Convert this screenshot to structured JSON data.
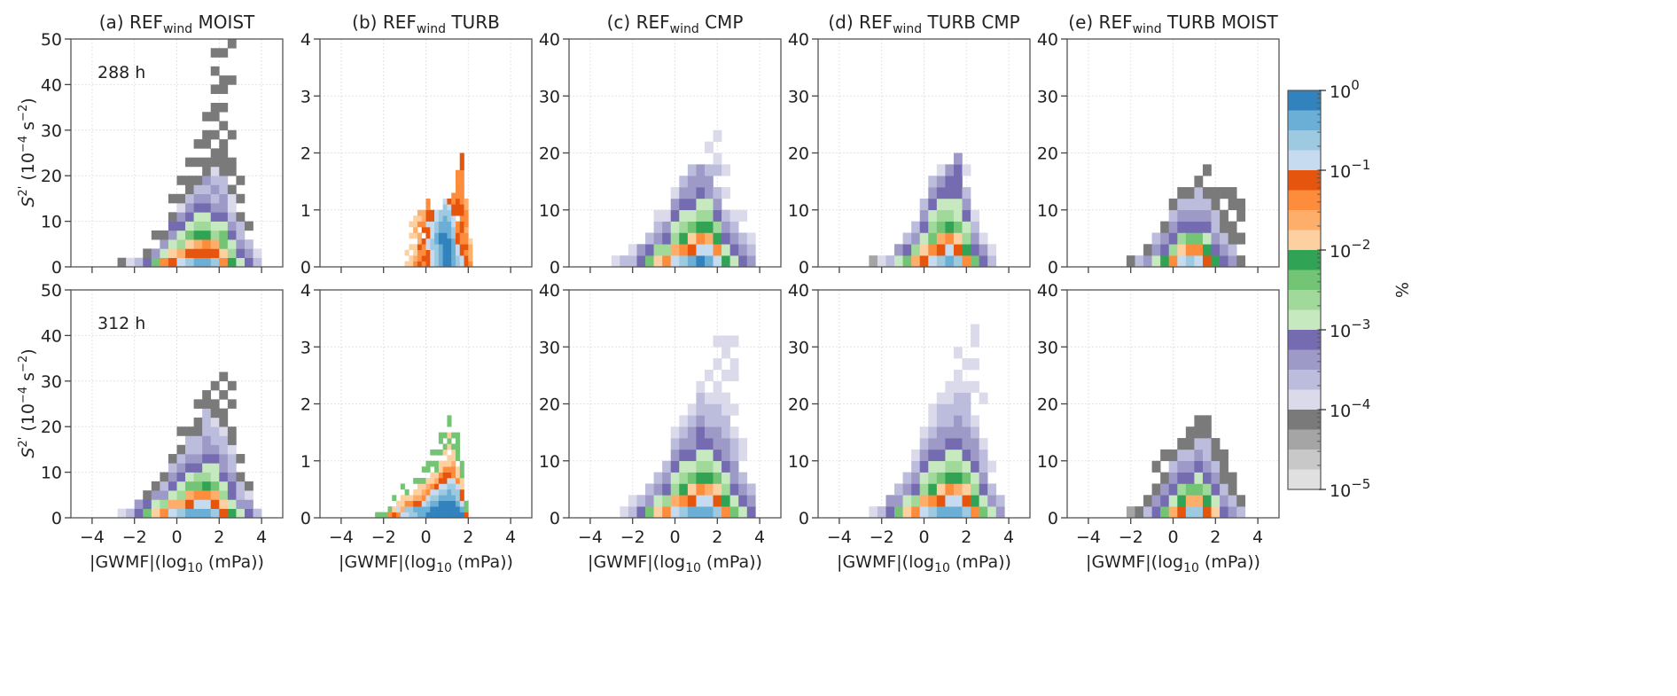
{
  "chart_data": {
    "type": "heatmap",
    "xlabel": {
      "pre": "|GWMF|(log",
      "sub": "10",
      "post": " (mPa))"
    },
    "ylabel": {
      "s": "S",
      "sup1": "2'",
      "mid": " (10",
      "sup2": "−4",
      "mid2": " s",
      "sup3": "−2",
      "post": ")"
    },
    "xlim": [
      -5,
      5
    ],
    "xticks": [
      -4,
      -2,
      0,
      2,
      4
    ],
    "grid": true,
    "row_annotations": [
      "288 h",
      "312 h"
    ],
    "columns": [
      {
        "id": "a",
        "title_pre": "(a) REF",
        "title_sub": "wind",
        "title_post": " MOIST",
        "ylim": [
          0,
          50
        ],
        "yticks": [
          0,
          10,
          20,
          30,
          40,
          50
        ]
      },
      {
        "id": "b",
        "title_pre": "(b) REF",
        "title_sub": "wind",
        "title_post": " TURB",
        "ylim": [
          0,
          4
        ],
        "yticks": [
          0,
          1,
          2,
          3,
          4
        ]
      },
      {
        "id": "c",
        "title_pre": "(c) REF",
        "title_sub": "wind",
        "title_post": " CMP",
        "ylim": [
          0,
          40
        ],
        "yticks": [
          0,
          10,
          20,
          30,
          40
        ]
      },
      {
        "id": "d",
        "title_pre": "(d) REF",
        "title_sub": "wind",
        "title_post": " TURB CMP",
        "ylim": [
          0,
          40
        ],
        "yticks": [
          0,
          10,
          20,
          30,
          40
        ]
      },
      {
        "id": "e",
        "title_pre": "(e) REF",
        "title_sub": "wind",
        "title_post": " TURB MOIST",
        "ylim": [
          0,
          40
        ],
        "yticks": [
          0,
          10,
          20,
          30,
          40
        ]
      }
    ],
    "colorbar": {
      "label": "%",
      "scale": "log",
      "range": [
        1e-05,
        1
      ],
      "ticks": [
        {
          "base": "10",
          "exp": "0"
        },
        {
          "base": "10",
          "exp": "−1"
        },
        {
          "base": "10",
          "exp": "−2"
        },
        {
          "base": "10",
          "exp": "−3"
        },
        {
          "base": "10",
          "exp": "−4"
        },
        {
          "base": "10",
          "exp": "−5"
        }
      ],
      "levels_per_decade": 4,
      "colors": [
        "#3182bd",
        "#6baed6",
        "#9ecae1",
        "#c6dbef",
        "#e6550d",
        "#fd8d3c",
        "#fdae6b",
        "#fdd0a2",
        "#31a354",
        "#74c476",
        "#a1d99b",
        "#c7e9c0",
        "#756bb1",
        "#9e9ac8",
        "#bcbddc",
        "#dadaeb",
        "#7a7a7a",
        "#a5a5a5",
        "#c8c8c8",
        "#e0e0e0"
      ]
    },
    "encoding_note": "columns[] strings list level indices bottom-up (0-9,a-j = colour index, '.' = empty bin)",
    "panels": [
      {
        "column": "a",
        "row": 0,
        "x0": -2.8,
        "dx": 0.4,
        "dy": 2,
        "bins": [
          "g",
          "f",
          "e",
          "cg",
          "9d.g",
          "5bdg",
          "47bdcg.g",
          "36abcdfg.g",
          "2479bcdegg.g",
          "1468abcdeg.g.g",
          "1458abcdedgg.gg.g",
          "246abcdedefgg.g.gg.g.g.g",
          "5799bcddeegggg.g.g.gg..g",
          "8abcdeffg.gg..g.....g...g",
          "bcdeeg.g.g",
          "cde.g",
          "ef"
        ]
      },
      {
        "column": "b",
        "row": 0,
        "x0": -1.0,
        "dx": 0.2,
        "dy": 0.1,
        "bins": [
          "7.7",
          "77.7.7.7",
          "5677.7677",
          "455466.576",
          "54554.4566",
          "444334434455",
          "3332233344",
          "2222112233",
          "1111001122",
          "000000111223",
          "000001112234",
          "1111122334455",
          "22334455.44455555",
          "33445544544555555444",
          "445455655566",
          "56667"
        ]
      },
      {
        "column": "c",
        "row": 0,
        "x0": -3.0,
        "dx": 0.4,
        "dy": 2,
        "bins": [
          "f",
          "e",
          "ef",
          "cd",
          "9ce",
          "7adef",
          "5acdf",
          "36abcdf",
          "258abcde",
          "1479bcdde",
          "0358abcdd",
          "1368abdde.f",
          "358acde.ef.f",
          "8bcde.f.f",
          "bcdef",
          "cde.f",
          "def"
        ]
      },
      {
        "column": "d",
        "row": 0,
        "x0": -2.6,
        "dx": 0.4,
        "dy": 2,
        "bins": [
          "h",
          "f",
          "e",
          "bd",
          "9ce",
          "6ade",
          "47bcde",
          "359abcde",
          "2469abcdf",
          "1358abccd",
          "2479bbcccd",
          "58abcde.f",
          "9cdef",
          "cdf",
          "ef"
        ]
      },
      {
        "column": "e",
        "row": 0,
        "x0": -2.2,
        "dx": 0.4,
        "dy": 2,
        "bins": [
          "g",
          "e",
          "dg",
          "bde",
          "8cdg",
          "5acdeg",
          "37acdeg",
          "259cdeg",
          "359cdeeg",
          "48bcdeg.g",
          "8cdeegg",
          "cdegg.g",
          "degg.gg",
          "g.g.gg"
        ]
      },
      {
        "column": "a",
        "row": 1,
        "x0": -2.8,
        "dx": 0.4,
        "dy": 2,
        "bins": [
          "f",
          "e",
          "cd",
          "9cg",
          "7bdg",
          "5adeg",
          "36bcdeg",
          "26abcdeg.g",
          "1469bcdeeg",
          "1359acdeegg.g",
          "1358abcddeeegg",
          "2469bbcdeefgg.g",
          "47abcddeefgg.g.g",
          "8bccdeefgg..g.g",
          "bdeeg.g",
          "cdfg",
          "e"
        ]
      },
      {
        "column": "b",
        "row": 1,
        "x0": -2.4,
        "dx": 0.2,
        "dy": 0.1,
        "bins": [
          "9",
          "9",
          "9",
          "59",
          "47.9",
          "537",
          "3677.9",
          "32579",
          "2257",
          "21467.9",
          "1146779",
          "1135679.9",
          "0123567.99",
          "00123577.9.9",
          "0012346799.9",
          "0001234577.9.99",
          "0001234457.79.9",
          "00011234577.797.99",
          "0001223556779.9",
          "001223577.99999",
          "0134477999",
          "499"
        ]
      },
      {
        "column": "c",
        "row": 1,
        "x0": -2.6,
        "dx": 0.4,
        "dy": 2,
        "bins": [
          "f",
          "ef",
          "ce",
          "9de",
          "7bde",
          "5acde",
          "36abcdef",
          "258abcdef",
          "1479bcddef",
          "1358abccdeef",
          "1368abcdeef.f",
          "2479bcddeeff.f.f",
          "58abcddeeff.f.ff",
          "9bcddeef.f..ff.f",
          "bcde.ff",
          "cde"
        ]
      },
      {
        "column": "d",
        "row": 1,
        "x0": -2.6,
        "dx": 0.4,
        "dy": 2,
        "bins": [
          "f",
          "e",
          "cd",
          "9de",
          "7bde",
          "5acdef",
          "36abcdef",
          "258abcdeff",
          "1479bcddeef",
          "1358abcdeeff",
          "1368abcddeeff.f",
          "2479bcddeeef.f",
          "58abcddef..f.f.ff",
          "9bcdeef...f",
          "bde.f",
          "de"
        ]
      },
      {
        "column": "e",
        "row": 1,
        "x0": -2.2,
        "dx": 0.4,
        "dy": 2,
        "bins": [
          "h",
          "g",
          "eg",
          "cdg.g",
          "9cdg.g",
          "6bcdeg",
          "48acdeg",
          "269cdegg",
          "269bcdegg",
          "48acdeegg",
          "7bcdegg",
          "cdeggg",
          "degg",
          "eg"
        ]
      }
    ]
  }
}
